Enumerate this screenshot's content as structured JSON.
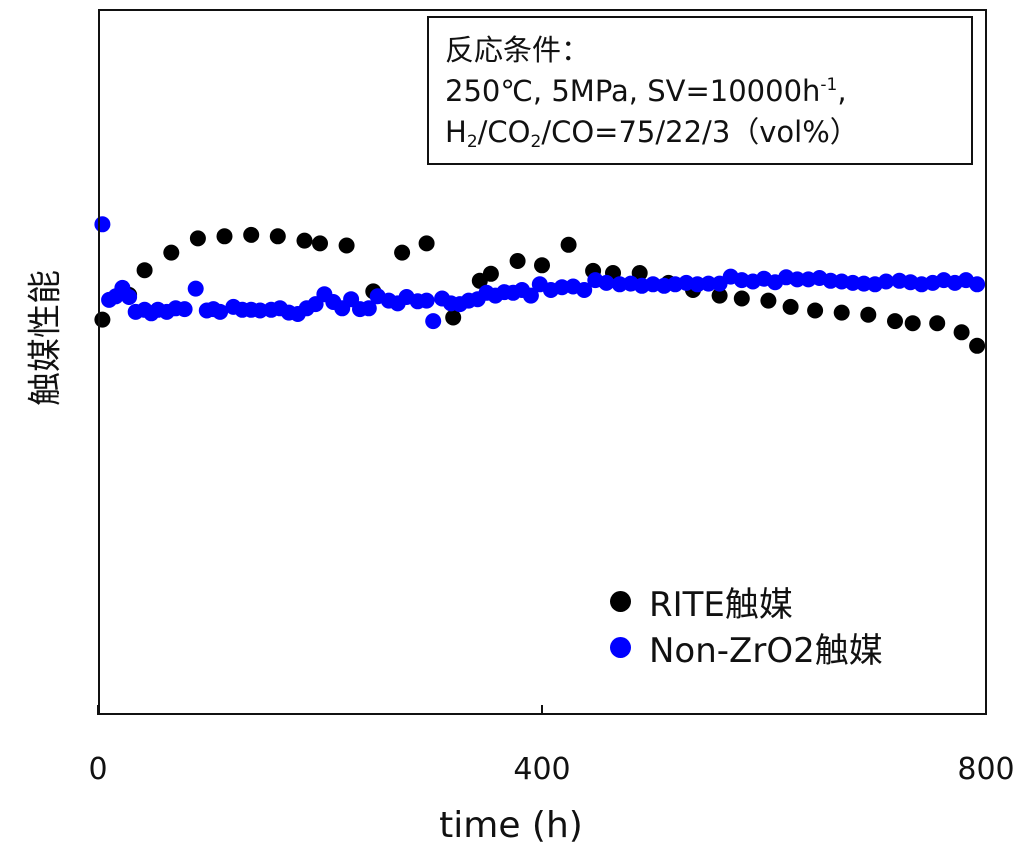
{
  "chart_data": {
    "type": "scatter",
    "title": "",
    "xlabel": "time (h)",
    "ylabel": "触媒性能",
    "xlim": [
      0,
      800
    ],
    "ylim": [
      0,
      100
    ],
    "x_ticks": [
      "0",
      "400",
      "800"
    ],
    "grid": false,
    "legend_position": "bottom-right",
    "annotation": {
      "line1": "反応条件：",
      "line2_pre": "250℃, 5MPa, SV=10000h",
      "line2_sup": "-1",
      "line2_post": ",",
      "line3_a": "H",
      "line3_sub1": "2",
      "line3_b": "/CO",
      "line3_sub2": "2",
      "line3_c": "/CO=75/22/3（vol%）"
    },
    "series": [
      {
        "name": "RITE触媒",
        "color": "#000000",
        "points": [
          [
            4,
            56
          ],
          [
            28,
            59.5
          ],
          [
            42,
            63
          ],
          [
            66,
            65.5
          ],
          [
            90,
            67.5
          ],
          [
            114,
            67.8
          ],
          [
            138,
            68
          ],
          [
            162,
            67.8
          ],
          [
            186,
            67.2
          ],
          [
            200,
            66.8
          ],
          [
            224,
            66.5
          ],
          [
            248,
            60
          ],
          [
            274,
            65.5
          ],
          [
            296,
            66.8
          ],
          [
            320,
            56.3
          ],
          [
            344,
            61.5
          ],
          [
            354,
            62.5
          ],
          [
            378,
            64.3
          ],
          [
            400,
            63.7
          ],
          [
            424,
            66.6
          ],
          [
            446,
            62.9
          ],
          [
            464,
            62.6
          ],
          [
            488,
            62.6
          ],
          [
            514,
            61.2
          ],
          [
            536,
            60.2
          ],
          [
            560,
            59.4
          ],
          [
            580,
            59
          ],
          [
            604,
            58.7
          ],
          [
            624,
            57.8
          ],
          [
            646,
            57.3
          ],
          [
            670,
            57
          ],
          [
            694,
            56.7
          ],
          [
            718,
            55.8
          ],
          [
            734,
            55.5
          ],
          [
            756,
            55.5
          ],
          [
            778,
            54.2
          ],
          [
            792,
            52.3
          ]
        ]
      },
      {
        "name": "Non-ZrO2触媒",
        "color": "#0000ff",
        "points": [
          [
            4,
            69.5
          ],
          [
            10,
            58.8
          ],
          [
            16,
            59.3
          ],
          [
            22,
            60.5
          ],
          [
            28,
            59.2
          ],
          [
            34,
            57.1
          ],
          [
            42,
            57.4
          ],
          [
            48,
            56.9
          ],
          [
            54,
            57.4
          ],
          [
            62,
            57.1
          ],
          [
            70,
            57.6
          ],
          [
            78,
            57.5
          ],
          [
            88,
            60.4
          ],
          [
            98,
            57.3
          ],
          [
            104,
            57.5
          ],
          [
            110,
            57.1
          ],
          [
            122,
            57.8
          ],
          [
            130,
            57.4
          ],
          [
            138,
            57.4
          ],
          [
            146,
            57.3
          ],
          [
            156,
            57.4
          ],
          [
            164,
            57.6
          ],
          [
            172,
            57
          ],
          [
            180,
            56.8
          ],
          [
            188,
            57.6
          ],
          [
            196,
            58.2
          ],
          [
            204,
            59.6
          ],
          [
            212,
            58.5
          ],
          [
            220,
            57.6
          ],
          [
            228,
            58.9
          ],
          [
            236,
            57.5
          ],
          [
            244,
            57.6
          ],
          [
            252,
            59.3
          ],
          [
            262,
            58.7
          ],
          [
            270,
            58.3
          ],
          [
            278,
            59.2
          ],
          [
            288,
            58.6
          ],
          [
            296,
            58.7
          ],
          [
            302,
            55.8
          ],
          [
            310,
            59
          ],
          [
            318,
            58.3
          ],
          [
            326,
            58.2
          ],
          [
            334,
            58.7
          ],
          [
            342,
            58.9
          ],
          [
            350,
            59.8
          ],
          [
            358,
            59.4
          ],
          [
            366,
            59.9
          ],
          [
            374,
            59.8
          ],
          [
            382,
            60.2
          ],
          [
            390,
            59.4
          ],
          [
            398,
            61
          ],
          [
            408,
            60.2
          ],
          [
            418,
            60.6
          ],
          [
            428,
            60.7
          ],
          [
            438,
            60.2
          ],
          [
            448,
            61.6
          ],
          [
            458,
            61.2
          ],
          [
            470,
            61
          ],
          [
            480,
            61.1
          ],
          [
            490,
            60.8
          ],
          [
            500,
            61
          ],
          [
            510,
            60.8
          ],
          [
            520,
            61
          ],
          [
            530,
            61.2
          ],
          [
            540,
            61
          ],
          [
            550,
            61.1
          ],
          [
            560,
            61.1
          ],
          [
            570,
            62.1
          ],
          [
            580,
            61.6
          ],
          [
            590,
            61.4
          ],
          [
            600,
            61.8
          ],
          [
            610,
            61.3
          ],
          [
            620,
            62
          ],
          [
            630,
            61.7
          ],
          [
            640,
            61.7
          ],
          [
            650,
            61.9
          ],
          [
            660,
            61.5
          ],
          [
            670,
            61.4
          ],
          [
            680,
            61.2
          ],
          [
            690,
            61.1
          ],
          [
            700,
            61
          ],
          [
            710,
            61.4
          ],
          [
            722,
            61.5
          ],
          [
            732,
            61.3
          ],
          [
            742,
            61
          ],
          [
            752,
            61.2
          ],
          [
            762,
            61.6
          ],
          [
            772,
            61.2
          ],
          [
            782,
            61.6
          ],
          [
            792,
            61
          ]
        ]
      }
    ]
  }
}
